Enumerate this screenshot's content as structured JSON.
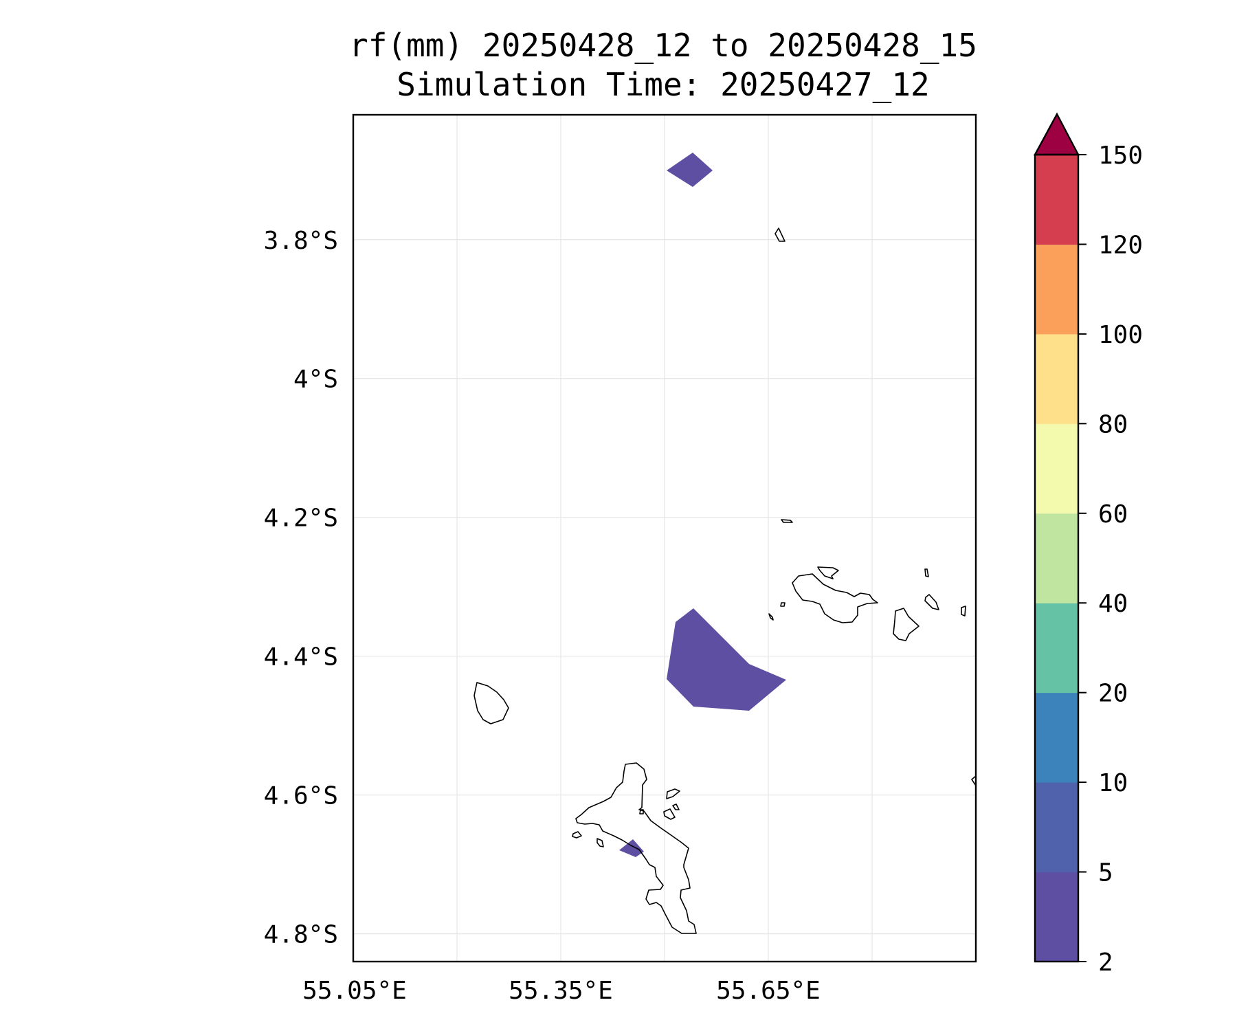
{
  "figure": {
    "title_line1": "rf(mm) 20250428_12 to 20250428_15",
    "title_line2": "Simulation Time: 20250427_12"
  },
  "map": {
    "lat_ticks": [
      {
        "value": -3.8,
        "label": "3.8°S"
      },
      {
        "value": -4.0,
        "label": "4°S"
      },
      {
        "value": -4.2,
        "label": "4.2°S"
      },
      {
        "value": -4.4,
        "label": "4.4°S"
      },
      {
        "value": -4.6,
        "label": "4.6°S"
      },
      {
        "value": -4.8,
        "label": "4.8°S"
      }
    ],
    "lon_ticks": [
      {
        "value": 55.05,
        "label": "55.05°E"
      },
      {
        "value": 55.35,
        "label": "55.35°E"
      },
      {
        "value": 55.65,
        "label": "55.65°E"
      }
    ],
    "lon_gridlines": [
      55.05,
      55.2,
      55.35,
      55.5,
      55.65,
      55.8
    ],
    "lon_range": [
      55.05,
      55.95
    ],
    "lat_range": [
      -4.84,
      -3.62
    ],
    "grid": true,
    "coastline_color": "#000000"
  },
  "colorbar": {
    "levels": [
      "2",
      "5",
      "10",
      "20",
      "40",
      "60",
      "80",
      "100",
      "120",
      "150"
    ],
    "colors": [
      "#5e4fa2",
      "#4f62ab",
      "#3b83ba",
      "#66c2a5",
      "#bfe5a0",
      "#f3faad",
      "#fee08b",
      "#fba05b",
      "#d53e4f"
    ],
    "extend_color": "#9e0142",
    "extend": "max"
  },
  "rain_regions": [
    {
      "label": "",
      "level": "2-5",
      "color": "#5e4fa2"
    },
    {
      "label": "",
      "level": "2-5",
      "color": "#5e4fa2"
    },
    {
      "label": "",
      "level": "2-5",
      "color": "#5e4fa2"
    }
  ]
}
